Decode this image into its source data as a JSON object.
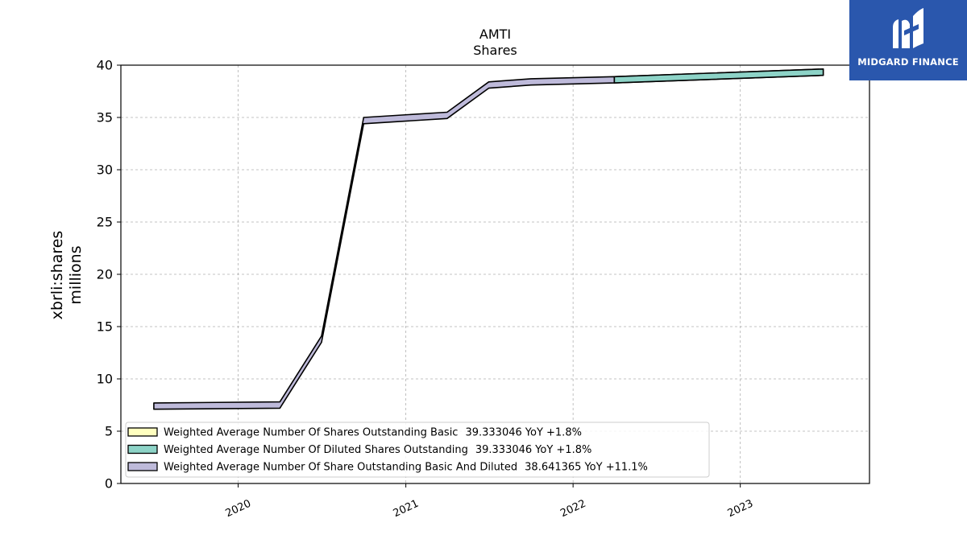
{
  "logo": {
    "text": "MIDGARD FINANCE",
    "icon": "midgard-m-logo-icon",
    "background": "#2a57ad"
  },
  "chart_data": {
    "type": "line",
    "title": "AMTI",
    "subtitle": "Shares",
    "ylabel_line1": "xbrli:shares",
    "ylabel_line2": "millions",
    "ylim": [
      0,
      40
    ],
    "yticks": [
      0,
      5,
      10,
      15,
      20,
      25,
      30,
      35,
      40
    ],
    "xlim": [
      "2019-04-20",
      "2023-10-10"
    ],
    "xticks": [
      {
        "date": "2020-01-01",
        "label": "2020"
      },
      {
        "date": "2021-01-01",
        "label": "2021"
      },
      {
        "date": "2022-01-01",
        "label": "2022"
      },
      {
        "date": "2023-01-01",
        "label": "2023"
      }
    ],
    "grid": true,
    "legend_position": "lower-left",
    "series": [
      {
        "name": "Weighted Average Number Of Shares Outstanding Basic",
        "legend_value": "39.333046",
        "legend_yoy": "YoY +1.8%",
        "color": "#ffffbf",
        "points": [
          {
            "x": "2022-04-01",
            "y": 38.6
          },
          {
            "x": "2023-07-01",
            "y": 39.333046
          }
        ]
      },
      {
        "name": "Weighted Average Number Of Diluted Shares Outstanding",
        "legend_value": "39.333046",
        "legend_yoy": "YoY +1.8%",
        "color": "#8dd3c7",
        "points": [
          {
            "x": "2022-04-01",
            "y": 38.6
          },
          {
            "x": "2023-07-01",
            "y": 39.333046
          }
        ]
      },
      {
        "name": "Weighted Average Number Of Share Outstanding Basic And Diluted",
        "legend_value": "38.641365",
        "legend_yoy": "YoY +11.1%",
        "color": "#bebada",
        "points": [
          {
            "x": "2019-07-01",
            "y": 7.4
          },
          {
            "x": "2020-04-01",
            "y": 7.5
          },
          {
            "x": "2020-07-01",
            "y": 13.8
          },
          {
            "x": "2020-10-01",
            "y": 34.7
          },
          {
            "x": "2021-04-01",
            "y": 35.2
          },
          {
            "x": "2021-07-01",
            "y": 38.1
          },
          {
            "x": "2021-10-01",
            "y": 38.4
          },
          {
            "x": "2022-04-01",
            "y": 38.6
          }
        ]
      }
    ]
  }
}
